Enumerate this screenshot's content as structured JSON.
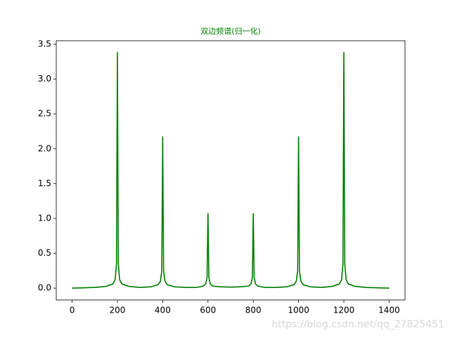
{
  "chart_data": {
    "type": "line",
    "title": "双边频谱(归一化)",
    "title_color": "#008000",
    "color": "#008000",
    "x": [
      0,
      50,
      100,
      150,
      180,
      190,
      196,
      200,
      204,
      210,
      220,
      250,
      300,
      350,
      380,
      390,
      396,
      400,
      404,
      410,
      420,
      450,
      500,
      550,
      580,
      590,
      596,
      600,
      604,
      610,
      620,
      650,
      700,
      750,
      780,
      790,
      796,
      800,
      804,
      810,
      820,
      850,
      900,
      950,
      980,
      990,
      996,
      1000,
      1004,
      1010,
      1020,
      1050,
      1100,
      1150,
      1180,
      1190,
      1196,
      1200,
      1204,
      1210,
      1220,
      1250,
      1300,
      1350,
      1400
    ],
    "values": [
      0.0,
      0.005,
      0.01,
      0.025,
      0.06,
      0.12,
      0.35,
      3.38,
      0.35,
      0.12,
      0.06,
      0.025,
      0.01,
      0.02,
      0.05,
      0.1,
      0.25,
      2.17,
      0.25,
      0.1,
      0.05,
      0.02,
      0.01,
      0.01,
      0.03,
      0.06,
      0.15,
      1.07,
      0.15,
      0.06,
      0.03,
      0.02,
      0.015,
      0.02,
      0.03,
      0.06,
      0.15,
      1.07,
      0.15,
      0.06,
      0.03,
      0.01,
      0.01,
      0.02,
      0.05,
      0.1,
      0.25,
      2.17,
      0.25,
      0.1,
      0.05,
      0.02,
      0.01,
      0.025,
      0.06,
      0.12,
      0.35,
      3.38,
      0.35,
      0.12,
      0.06,
      0.025,
      0.01,
      0.005,
      0.0
    ],
    "xlim": [
      -70,
      1470
    ],
    "ylim": [
      -0.17,
      3.55
    ],
    "xticks": [
      0,
      200,
      400,
      600,
      800,
      1000,
      1200,
      1400
    ],
    "yticks": [
      {
        "value": 0,
        "label": "0.0"
      },
      0.5,
      {
        "value": 1,
        "label": "1.0"
      },
      1.5,
      {
        "value": 2,
        "label": "2.0"
      },
      2.5,
      {
        "value": 3,
        "label": "3.0"
      },
      3.5
    ],
    "watermark": "https://blog.csdn.net/qq_27825451"
  }
}
